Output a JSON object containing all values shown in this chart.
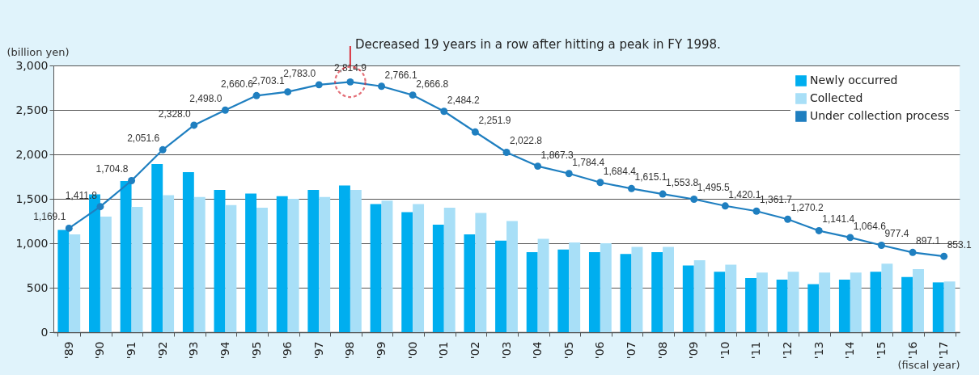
{
  "chart_data": {
    "type": "bar",
    "ylabel": "(billion yen)",
    "xlabel": "(fiscal year)",
    "categories": [
      "'89",
      "'90",
      "'91",
      "'92",
      "'93",
      "'94",
      "'95",
      "'96",
      "'97",
      "'98",
      "'99",
      "'00",
      "'01",
      "'02",
      "'03",
      "'04",
      "'05",
      "'06",
      "'07",
      "'08",
      "'09",
      "'10",
      "'11",
      "'12",
      "'13",
      "'14",
      "'15",
      "'16",
      "'17"
    ],
    "series": [
      {
        "name": "Newly occurred",
        "color": "#00aeef",
        "values": [
          1150,
          1550,
          1700,
          1890,
          1800,
          1600,
          1560,
          1530,
          1600,
          1650,
          1440,
          1350,
          1210,
          1100,
          1030,
          900,
          930,
          900,
          880,
          900,
          750,
          680,
          610,
          590,
          540,
          590,
          680,
          620,
          560
        ]
      },
      {
        "name": "Collected",
        "color": "#a8dff7",
        "values": [
          1100,
          1300,
          1410,
          1540,
          1520,
          1430,
          1400,
          1500,
          1520,
          1600,
          1480,
          1440,
          1400,
          1340,
          1250,
          1050,
          1010,
          1000,
          960,
          960,
          810,
          760,
          670,
          680,
          670,
          670,
          770,
          710,
          570
        ]
      },
      {
        "name": "Under collection process",
        "type": "line",
        "color": "#1f7fc0",
        "values": [
          1169.1,
          1411.8,
          1704.8,
          2051.6,
          2328.0,
          2498.0,
          2660.6,
          2703.1,
          2783.0,
          2814.9,
          2766.1,
          2666.8,
          2484.2,
          2251.9,
          2022.8,
          1867.3,
          1784.4,
          1684.4,
          1615.1,
          1553.8,
          1495.5,
          1420.1,
          1361.7,
          1270.2,
          1141.4,
          1064.6,
          977.4,
          897.1,
          853.1
        ],
        "value_labels": [
          "1,169.1",
          "1,411.8",
          "1,704.8",
          "2,051.6",
          "2,328.0",
          "2,498.0",
          "2,660.6",
          "2,703.1",
          "2,783.0",
          "2,814.9",
          "2,766.1",
          "2,666.8",
          "2,484.2",
          "2,251.9",
          "2,022.8",
          "1,867.3",
          "1,784.4",
          "1,684.4",
          "1,615.1",
          "1,553.8",
          "1,495.5",
          "1,420.1",
          "1,361.7",
          "1,270.2",
          "1,141.4",
          "1,064.6",
          "977.4",
          "897.1",
          "853.1"
        ]
      }
    ],
    "ylim": [
      0,
      3000
    ],
    "yticks": [
      0,
      500,
      {
        "value": 1000,
        "label": "1,000"
      },
      {
        "value": 1500,
        "label": "1,500"
      },
      {
        "value": 2000,
        "label": "2,000"
      },
      {
        "value": 2500,
        "label": "2,500"
      },
      {
        "value": 3000,
        "label": "3,000"
      }
    ],
    "grid": "y",
    "legend": "top right",
    "marker": "circle",
    "annotations": [
      {
        "text": "Decreased 19 years in a row after hitting a peak in FY 1998.",
        "x": "'98",
        "y": 2814.9
      }
    ]
  }
}
